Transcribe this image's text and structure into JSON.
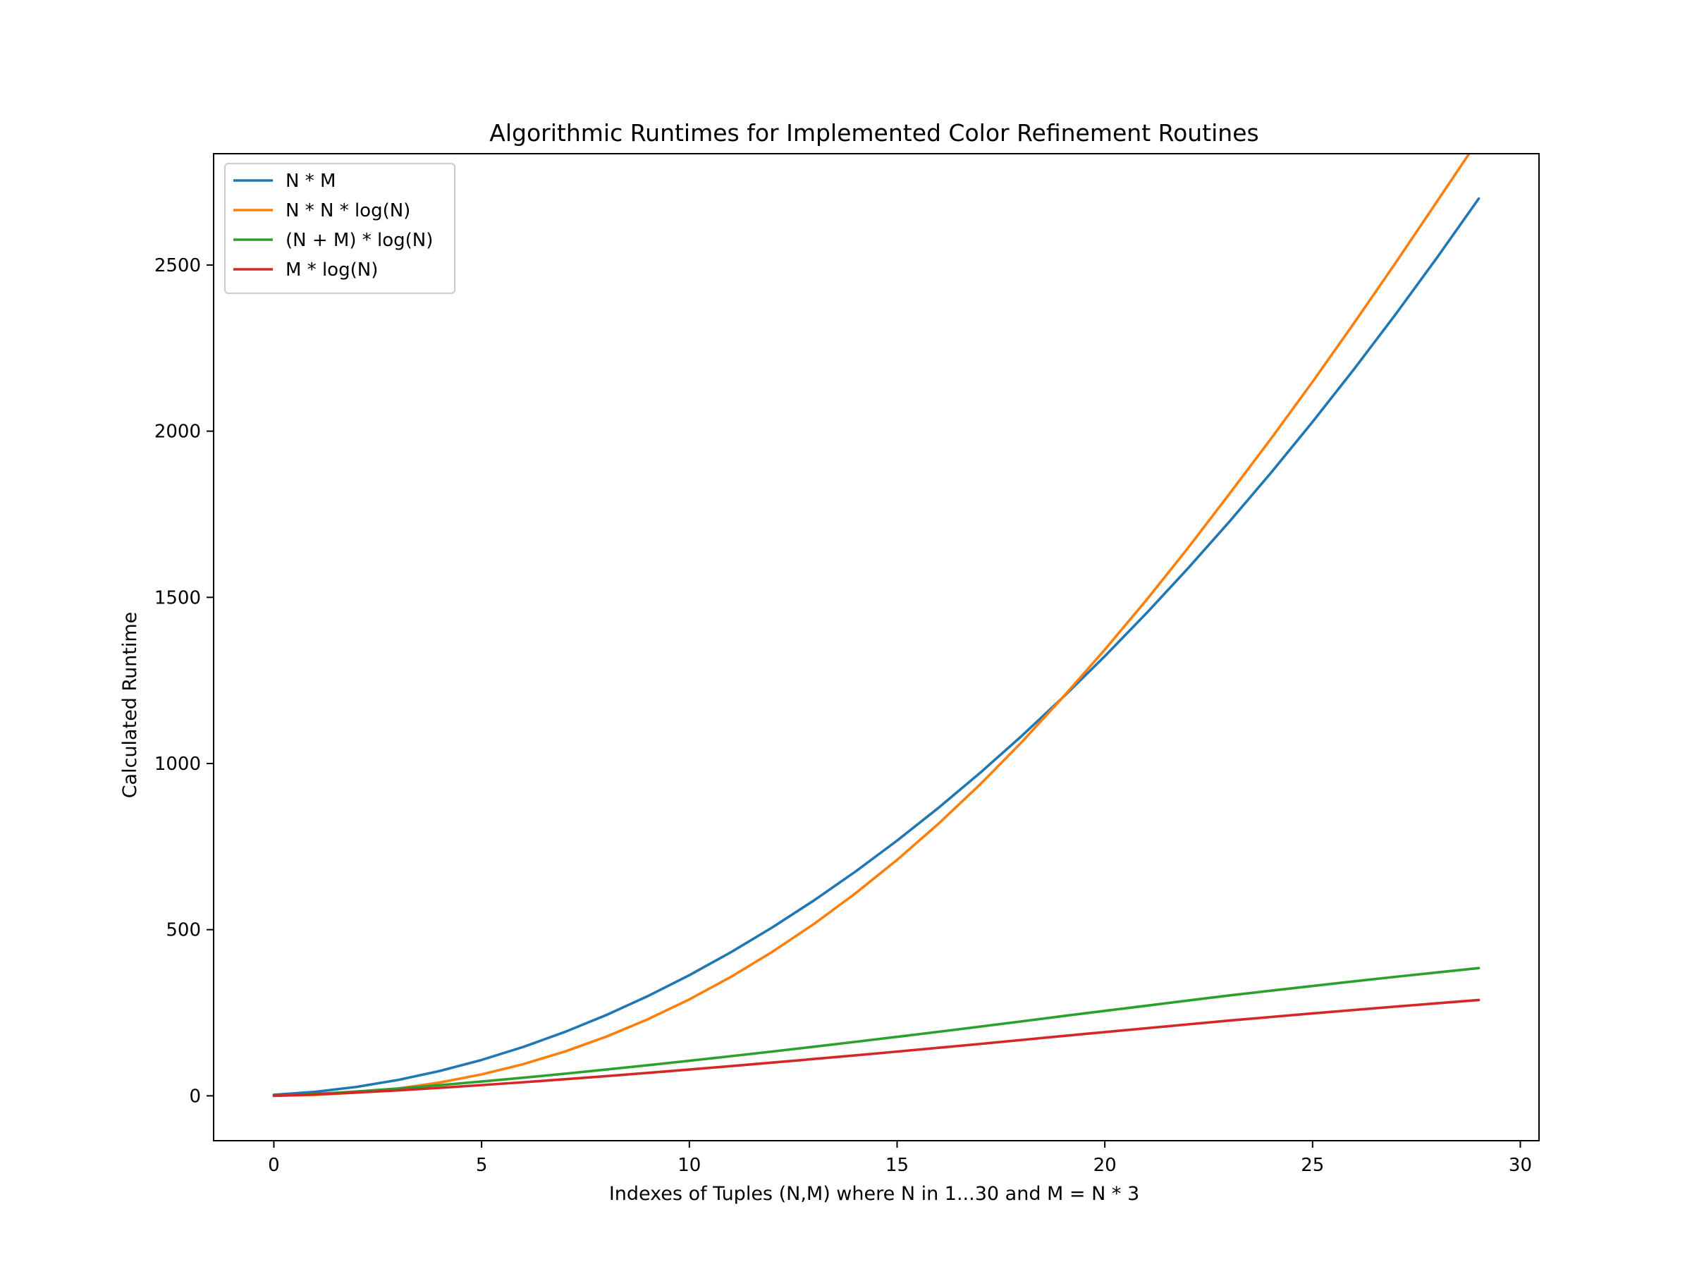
{
  "chart_data": {
    "type": "line",
    "title": "Algorithmic Runtimes for Implemented Color Refinement Routines",
    "xlabel": "Indexes of Tuples (N,M) where N in 1...30 and M = N * 3",
    "ylabel": "Calculated Runtime",
    "xlim": [
      -1.45,
      30.45
    ],
    "ylim": [
      -135,
      2835
    ],
    "xticks": [
      0,
      5,
      10,
      15,
      20,
      25,
      30
    ],
    "yticks": [
      0,
      500,
      1000,
      1500,
      2000,
      2500
    ],
    "grid": false,
    "legend_position": "top-left",
    "x": [
      0,
      1,
      2,
      3,
      4,
      5,
      6,
      7,
      8,
      9,
      10,
      11,
      12,
      13,
      14,
      15,
      16,
      17,
      18,
      19,
      20,
      21,
      22,
      23,
      24,
      25,
      26,
      27,
      28,
      29
    ],
    "series": [
      {
        "name": "N * M",
        "color": "#1f77b4",
        "values": [
          3,
          12,
          27,
          48,
          75,
          108,
          147,
          192,
          243,
          300,
          363,
          432,
          507,
          588,
          675,
          768,
          867,
          972,
          1083,
          1200,
          1323,
          1452,
          1587,
          1728,
          1875,
          2028,
          2187,
          2352,
          2523,
          2700
        ]
      },
      {
        "name": "N * N * log(N)",
        "color": "#ff7f0e",
        "values": [
          0,
          2.8,
          9.9,
          22.2,
          40.2,
          64.5,
          95.3,
          133.1,
          178,
          230.3,
          290.2,
          357.8,
          433.5,
          517.3,
          609.5,
          710,
          819.2,
          937.3,
          1064.4,
          1200.7,
          1342.7,
          1491.8,
          1648.3,
          1811.7,
          1977.5,
          2148.6,
          2325.7,
          2506.9,
          2692.1,
          2878.3
        ]
      },
      {
        "name": "(N + M) * log(N)",
        "color": "#2ca02c",
        "values": [
          0,
          5.5,
          13.2,
          22.2,
          32.2,
          43,
          54.5,
          66.5,
          79.1,
          92.1,
          105.5,
          119.3,
          133.4,
          147.8,
          162.5,
          177.5,
          192.8,
          208.3,
          224.1,
          240.1,
          255.7,
          271.2,
          286.7,
          302.1,
          316.4,
          330.6,
          344.5,
          358.2,
          371.3,
          384.4
        ]
      },
      {
        "name": "M * log(N)",
        "color": "#d62728",
        "values": [
          0,
          4.2,
          9.9,
          16.6,
          24.1,
          32.3,
          40.8,
          49.9,
          59.3,
          69.1,
          79.1,
          89.5,
          100,
          110.9,
          121.9,
          133.1,
          144.6,
          156.2,
          168.1,
          180.1,
          191.8,
          203.4,
          215,
          226.5,
          237.3,
          248,
          258.4,
          268.6,
          278.5,
          288.3
        ]
      }
    ]
  }
}
